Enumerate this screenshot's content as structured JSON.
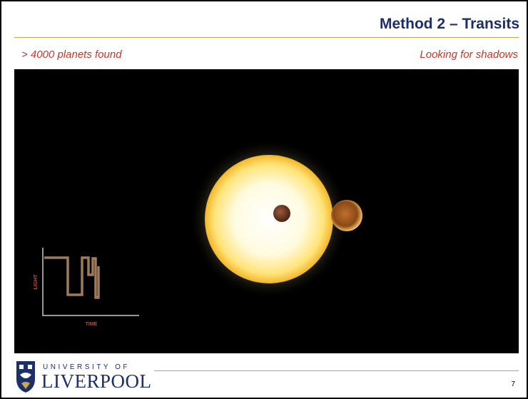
{
  "header": {
    "title": "Method 2 – Transits"
  },
  "subtitle_left": "> 4000 planets found",
  "subtitle_right": "Looking for shadows",
  "video": {
    "axis_y": "LIGHT",
    "axis_x": "TIME"
  },
  "footer": {
    "logo_line1": "UNIVERSITY OF",
    "logo_line2": "LIVERPOOL",
    "page": "7"
  }
}
